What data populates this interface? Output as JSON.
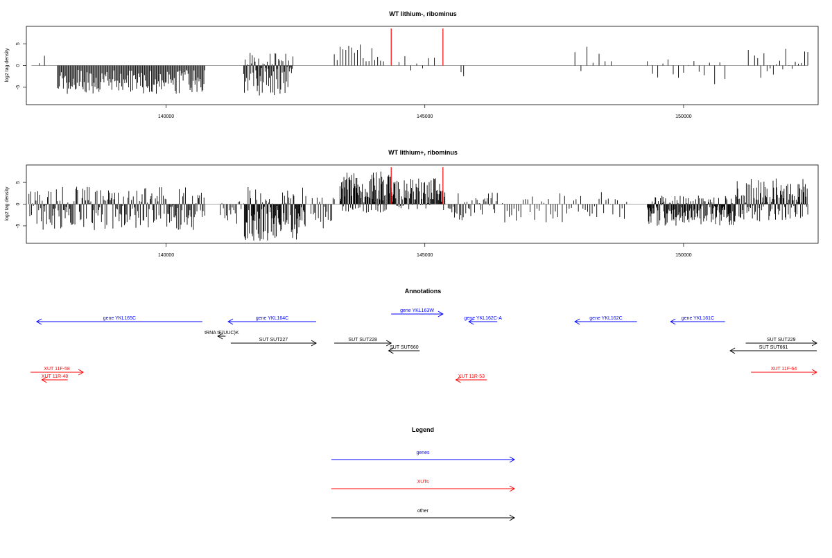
{
  "chart_data": [
    {
      "type": "bar",
      "title": "WT lithium-, ribominus",
      "ylabel": "log2 tag density",
      "xlim": [
        137300,
        152600
      ],
      "ylim": [
        -9,
        9
      ],
      "xticks": [
        140000,
        145000,
        150000
      ],
      "xtick_labels": [
        "140000",
        "145000",
        "150000"
      ],
      "yticks": [
        -5,
        0,
        5
      ],
      "ytick_labels": [
        "-5",
        "0",
        "5"
      ],
      "grid": false,
      "segments": [
        {
          "start": 137550,
          "end": 137650,
          "count": 2,
          "min": 0.5,
          "max": 2.5
        },
        {
          "start": 137900,
          "end": 140750,
          "count": 150,
          "min": -6.5,
          "max": -1.0
        },
        {
          "start": 141500,
          "end": 142450,
          "count": 70,
          "min": -7.0,
          "max": 3.0
        },
        {
          "start": 143250,
          "end": 144200,
          "count": 18,
          "min": 0.5,
          "max": 5.0
        },
        {
          "start": 144500,
          "end": 145300,
          "count": 8,
          "min": -1.5,
          "max": 2.5
        },
        {
          "start": 145700,
          "end": 145750,
          "count": 2,
          "min": -2.5,
          "max": -1.5
        },
        {
          "start": 147900,
          "end": 148600,
          "count": 7,
          "min": -2.5,
          "max": 4.5
        },
        {
          "start": 149300,
          "end": 150800,
          "count": 16,
          "min": -4.5,
          "max": 1.5
        },
        {
          "start": 151250,
          "end": 152400,
          "count": 20,
          "min": -3.0,
          "max": 4.0
        }
      ],
      "highlights": [
        {
          "x": 144350,
          "value": 8.5,
          "color": "#ff0000"
        },
        {
          "x": 145350,
          "value": 8.5,
          "color": "#ff0000"
        }
      ]
    },
    {
      "type": "bar",
      "title": "WT lithium+, ribominus",
      "ylabel": "log2 tag density",
      "xlim": [
        137300,
        152600
      ],
      "ylim": [
        -9,
        9
      ],
      "xticks": [
        140000,
        145000,
        150000
      ],
      "xtick_labels": [
        "140000",
        "145000",
        "150000"
      ],
      "yticks": [
        -5,
        0,
        5
      ],
      "ytick_labels": [
        "-5",
        "0",
        "5"
      ],
      "grid": false,
      "segments": [
        {
          "start": 137350,
          "end": 140750,
          "count": 200,
          "min": -6.0,
          "max": 4.0
        },
        {
          "start": 141050,
          "end": 141450,
          "count": 15,
          "min": -5.0,
          "max": 1.5
        },
        {
          "start": 141500,
          "end": 142700,
          "count": 100,
          "min": -8.5,
          "max": 4.0
        },
        {
          "start": 142800,
          "end": 143250,
          "count": 20,
          "min": -6.0,
          "max": 1.5
        },
        {
          "start": 143350,
          "end": 144400,
          "count": 110,
          "min": -2.0,
          "max": 7.5
        },
        {
          "start": 144400,
          "end": 145400,
          "count": 80,
          "min": -1.5,
          "max": 6.0
        },
        {
          "start": 145450,
          "end": 146400,
          "count": 40,
          "min": -4.0,
          "max": 3.0
        },
        {
          "start": 146500,
          "end": 148900,
          "count": 55,
          "min": -4.5,
          "max": 3.0
        },
        {
          "start": 149300,
          "end": 151000,
          "count": 170,
          "min": -5.0,
          "max": 2.0
        },
        {
          "start": 151000,
          "end": 152400,
          "count": 120,
          "min": -4.0,
          "max": 6.0
        }
      ],
      "highlights": [
        {
          "x": 144350,
          "value": 8.5,
          "color": "#ff0000"
        },
        {
          "x": 145350,
          "value": 8.5,
          "color": "#ff0000"
        }
      ]
    }
  ],
  "annotations": {
    "title": "Annotations",
    "colors": {
      "genes": "#0000ff",
      "XUTs": "#ff0000",
      "other": "#000000"
    },
    "features": [
      {
        "label": "gene YKL165C",
        "start": 137500,
        "end": 140700,
        "strand": "-",
        "kind": "genes",
        "row": 1
      },
      {
        "label": "gene YKL164C",
        "start": 141200,
        "end": 142900,
        "strand": "-",
        "kind": "genes",
        "row": 1
      },
      {
        "label": "gene YKL163W",
        "start": 144350,
        "end": 145350,
        "strand": "+",
        "kind": "genes",
        "row": 0
      },
      {
        "label": "gene YKL162C-A",
        "start": 145850,
        "end": 146400,
        "strand": "-",
        "kind": "genes",
        "row": 1
      },
      {
        "label": "gene YKL162C",
        "start": 147900,
        "end": 149100,
        "strand": "-",
        "kind": "genes",
        "row": 1
      },
      {
        "label": "gene YKL161C",
        "start": 149750,
        "end": 150800,
        "strand": "-",
        "kind": "genes",
        "row": 1
      },
      {
        "label": "tRNA tE(UUC)K",
        "start": 141000,
        "end": 141150,
        "strand": "-",
        "kind": "other",
        "row": 2
      },
      {
        "label": "SUT SUT227",
        "start": 141250,
        "end": 142900,
        "strand": "+",
        "kind": "other",
        "row": 3
      },
      {
        "label": "SUT SUT228",
        "start": 143250,
        "end": 144350,
        "strand": "+",
        "kind": "other",
        "row": 3
      },
      {
        "label": "SUT SUT660",
        "start": 144300,
        "end": 144900,
        "strand": "-",
        "kind": "other",
        "row": 4
      },
      {
        "label": "SUT SUT229",
        "start": 151200,
        "end": 152600,
        "strand": "+",
        "kind": "other",
        "row": 3
      },
      {
        "label": "SUT SUT661",
        "start": 150900,
        "end": 152600,
        "strand": "-",
        "kind": "other",
        "row": 4
      },
      {
        "label": "XUT 11F-58",
        "start": 137300,
        "end": 138400,
        "strand": "+",
        "kind": "XUTs",
        "row": 5
      },
      {
        "label": "XUT 11R-48",
        "start": 137600,
        "end": 138100,
        "strand": "-",
        "kind": "XUTs",
        "row": 6
      },
      {
        "label": "XUT 11R-53",
        "start": 145600,
        "end": 146200,
        "strand": "-",
        "kind": "XUTs",
        "row": 6
      },
      {
        "label": "XUT 11F-64",
        "start": 151300,
        "end": 152600,
        "strand": "+",
        "kind": "XUTs",
        "row": 5
      }
    ]
  },
  "legend": {
    "title": "Legend",
    "items": [
      {
        "label": "genes",
        "kind": "genes"
      },
      {
        "label": "XUTs",
        "kind": "XUTs"
      },
      {
        "label": "other",
        "kind": "other"
      }
    ]
  }
}
